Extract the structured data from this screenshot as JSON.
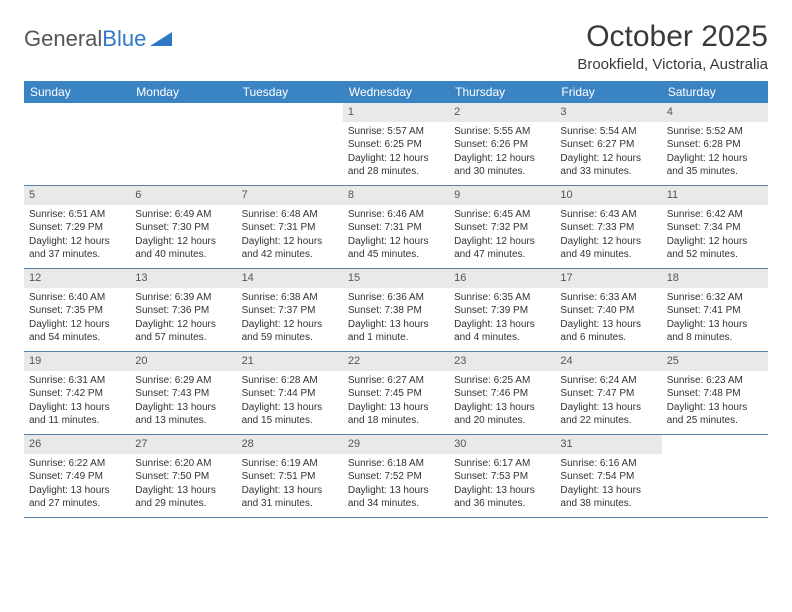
{
  "logo": {
    "part1": "General",
    "part2": "Blue"
  },
  "title": "October 2025",
  "subtitle": "Brookfield, Victoria, Australia",
  "colors": {
    "header_bg": "#3b84c4",
    "header_text": "#ffffff",
    "daynum_bg": "#e9e9e9",
    "rule": "#5a7fa8",
    "text": "#333333",
    "logo_gray": "#555555",
    "logo_blue": "#2f78c4",
    "background": "#ffffff"
  },
  "typography": {
    "title_fontsize": 30,
    "subtitle_fontsize": 15,
    "weekday_fontsize": 12,
    "cell_fontsize": 10,
    "daynum_fontsize": 11
  },
  "weekdays": [
    "Sunday",
    "Monday",
    "Tuesday",
    "Wednesday",
    "Thursday",
    "Friday",
    "Saturday"
  ],
  "grid": [
    [
      {
        "empty": true
      },
      {
        "empty": true
      },
      {
        "empty": true
      },
      {
        "day": "1",
        "sunrise": "Sunrise: 5:57 AM",
        "sunset": "Sunset: 6:25 PM",
        "daylight1": "Daylight: 12 hours",
        "daylight2": "and 28 minutes."
      },
      {
        "day": "2",
        "sunrise": "Sunrise: 5:55 AM",
        "sunset": "Sunset: 6:26 PM",
        "daylight1": "Daylight: 12 hours",
        "daylight2": "and 30 minutes."
      },
      {
        "day": "3",
        "sunrise": "Sunrise: 5:54 AM",
        "sunset": "Sunset: 6:27 PM",
        "daylight1": "Daylight: 12 hours",
        "daylight2": "and 33 minutes."
      },
      {
        "day": "4",
        "sunrise": "Sunrise: 5:52 AM",
        "sunset": "Sunset: 6:28 PM",
        "daylight1": "Daylight: 12 hours",
        "daylight2": "and 35 minutes."
      }
    ],
    [
      {
        "day": "5",
        "sunrise": "Sunrise: 6:51 AM",
        "sunset": "Sunset: 7:29 PM",
        "daylight1": "Daylight: 12 hours",
        "daylight2": "and 37 minutes."
      },
      {
        "day": "6",
        "sunrise": "Sunrise: 6:49 AM",
        "sunset": "Sunset: 7:30 PM",
        "daylight1": "Daylight: 12 hours",
        "daylight2": "and 40 minutes."
      },
      {
        "day": "7",
        "sunrise": "Sunrise: 6:48 AM",
        "sunset": "Sunset: 7:31 PM",
        "daylight1": "Daylight: 12 hours",
        "daylight2": "and 42 minutes."
      },
      {
        "day": "8",
        "sunrise": "Sunrise: 6:46 AM",
        "sunset": "Sunset: 7:31 PM",
        "daylight1": "Daylight: 12 hours",
        "daylight2": "and 45 minutes."
      },
      {
        "day": "9",
        "sunrise": "Sunrise: 6:45 AM",
        "sunset": "Sunset: 7:32 PM",
        "daylight1": "Daylight: 12 hours",
        "daylight2": "and 47 minutes."
      },
      {
        "day": "10",
        "sunrise": "Sunrise: 6:43 AM",
        "sunset": "Sunset: 7:33 PM",
        "daylight1": "Daylight: 12 hours",
        "daylight2": "and 49 minutes."
      },
      {
        "day": "11",
        "sunrise": "Sunrise: 6:42 AM",
        "sunset": "Sunset: 7:34 PM",
        "daylight1": "Daylight: 12 hours",
        "daylight2": "and 52 minutes."
      }
    ],
    [
      {
        "day": "12",
        "sunrise": "Sunrise: 6:40 AM",
        "sunset": "Sunset: 7:35 PM",
        "daylight1": "Daylight: 12 hours",
        "daylight2": "and 54 minutes."
      },
      {
        "day": "13",
        "sunrise": "Sunrise: 6:39 AM",
        "sunset": "Sunset: 7:36 PM",
        "daylight1": "Daylight: 12 hours",
        "daylight2": "and 57 minutes."
      },
      {
        "day": "14",
        "sunrise": "Sunrise: 6:38 AM",
        "sunset": "Sunset: 7:37 PM",
        "daylight1": "Daylight: 12 hours",
        "daylight2": "and 59 minutes."
      },
      {
        "day": "15",
        "sunrise": "Sunrise: 6:36 AM",
        "sunset": "Sunset: 7:38 PM",
        "daylight1": "Daylight: 13 hours",
        "daylight2": "and 1 minute."
      },
      {
        "day": "16",
        "sunrise": "Sunrise: 6:35 AM",
        "sunset": "Sunset: 7:39 PM",
        "daylight1": "Daylight: 13 hours",
        "daylight2": "and 4 minutes."
      },
      {
        "day": "17",
        "sunrise": "Sunrise: 6:33 AM",
        "sunset": "Sunset: 7:40 PM",
        "daylight1": "Daylight: 13 hours",
        "daylight2": "and 6 minutes."
      },
      {
        "day": "18",
        "sunrise": "Sunrise: 6:32 AM",
        "sunset": "Sunset: 7:41 PM",
        "daylight1": "Daylight: 13 hours",
        "daylight2": "and 8 minutes."
      }
    ],
    [
      {
        "day": "19",
        "sunrise": "Sunrise: 6:31 AM",
        "sunset": "Sunset: 7:42 PM",
        "daylight1": "Daylight: 13 hours",
        "daylight2": "and 11 minutes."
      },
      {
        "day": "20",
        "sunrise": "Sunrise: 6:29 AM",
        "sunset": "Sunset: 7:43 PM",
        "daylight1": "Daylight: 13 hours",
        "daylight2": "and 13 minutes."
      },
      {
        "day": "21",
        "sunrise": "Sunrise: 6:28 AM",
        "sunset": "Sunset: 7:44 PM",
        "daylight1": "Daylight: 13 hours",
        "daylight2": "and 15 minutes."
      },
      {
        "day": "22",
        "sunrise": "Sunrise: 6:27 AM",
        "sunset": "Sunset: 7:45 PM",
        "daylight1": "Daylight: 13 hours",
        "daylight2": "and 18 minutes."
      },
      {
        "day": "23",
        "sunrise": "Sunrise: 6:25 AM",
        "sunset": "Sunset: 7:46 PM",
        "daylight1": "Daylight: 13 hours",
        "daylight2": "and 20 minutes."
      },
      {
        "day": "24",
        "sunrise": "Sunrise: 6:24 AM",
        "sunset": "Sunset: 7:47 PM",
        "daylight1": "Daylight: 13 hours",
        "daylight2": "and 22 minutes."
      },
      {
        "day": "25",
        "sunrise": "Sunrise: 6:23 AM",
        "sunset": "Sunset: 7:48 PM",
        "daylight1": "Daylight: 13 hours",
        "daylight2": "and 25 minutes."
      }
    ],
    [
      {
        "day": "26",
        "sunrise": "Sunrise: 6:22 AM",
        "sunset": "Sunset: 7:49 PM",
        "daylight1": "Daylight: 13 hours",
        "daylight2": "and 27 minutes."
      },
      {
        "day": "27",
        "sunrise": "Sunrise: 6:20 AM",
        "sunset": "Sunset: 7:50 PM",
        "daylight1": "Daylight: 13 hours",
        "daylight2": "and 29 minutes."
      },
      {
        "day": "28",
        "sunrise": "Sunrise: 6:19 AM",
        "sunset": "Sunset: 7:51 PM",
        "daylight1": "Daylight: 13 hours",
        "daylight2": "and 31 minutes."
      },
      {
        "day": "29",
        "sunrise": "Sunrise: 6:18 AM",
        "sunset": "Sunset: 7:52 PM",
        "daylight1": "Daylight: 13 hours",
        "daylight2": "and 34 minutes."
      },
      {
        "day": "30",
        "sunrise": "Sunrise: 6:17 AM",
        "sunset": "Sunset: 7:53 PM",
        "daylight1": "Daylight: 13 hours",
        "daylight2": "and 36 minutes."
      },
      {
        "day": "31",
        "sunrise": "Sunrise: 6:16 AM",
        "sunset": "Sunset: 7:54 PM",
        "daylight1": "Daylight: 13 hours",
        "daylight2": "and 38 minutes."
      },
      {
        "empty": true
      }
    ]
  ]
}
